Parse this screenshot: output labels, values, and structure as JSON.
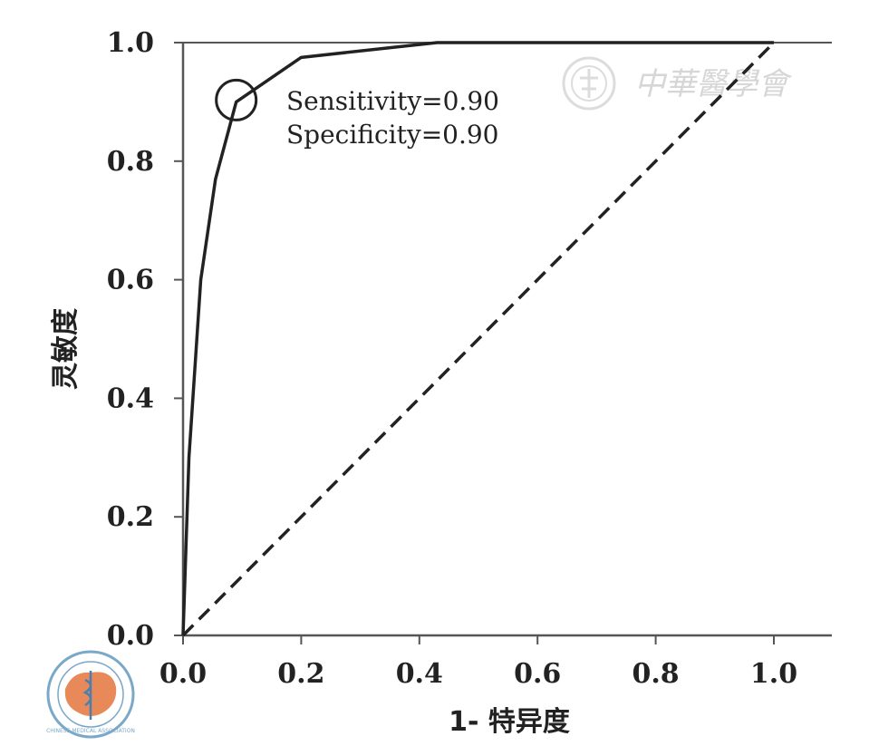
{
  "chart_data": {
    "type": "line",
    "xlabel": "1- 特异度",
    "ylabel": "灵敏度",
    "xlim": [
      0,
      1.1
    ],
    "ylim": [
      0,
      1.0
    ],
    "x_ticks": [
      "0.0",
      "0.2",
      "0.4",
      "0.6",
      "0.8",
      "1.0"
    ],
    "y_ticks": [
      "0.0",
      "0.2",
      "0.4",
      "0.6",
      "0.8",
      "1.0"
    ],
    "grid": false,
    "series": [
      {
        "style": "solid",
        "x": [
          0.0,
          0.005,
          0.01,
          0.02,
          0.03,
          0.055,
          0.09,
          0.2,
          0.43,
          1.0
        ],
        "y": [
          0.0,
          0.15,
          0.3,
          0.45,
          0.6,
          0.77,
          0.9,
          0.975,
          1.0,
          1.0
        ]
      },
      {
        "style": "dashed",
        "x": [
          0.0,
          1.0
        ],
        "y": [
          0.0,
          1.0
        ]
      }
    ],
    "highlight": {
      "x": 0.09,
      "y": 0.9,
      "marker": "circle"
    },
    "annotations": [
      "Sensitivity=0.90",
      "Specificity=0.90"
    ]
  },
  "watermark": {
    "text": "中華醫學會",
    "logo_text": "CHINESE MEDICAL ASSOCIATION"
  }
}
